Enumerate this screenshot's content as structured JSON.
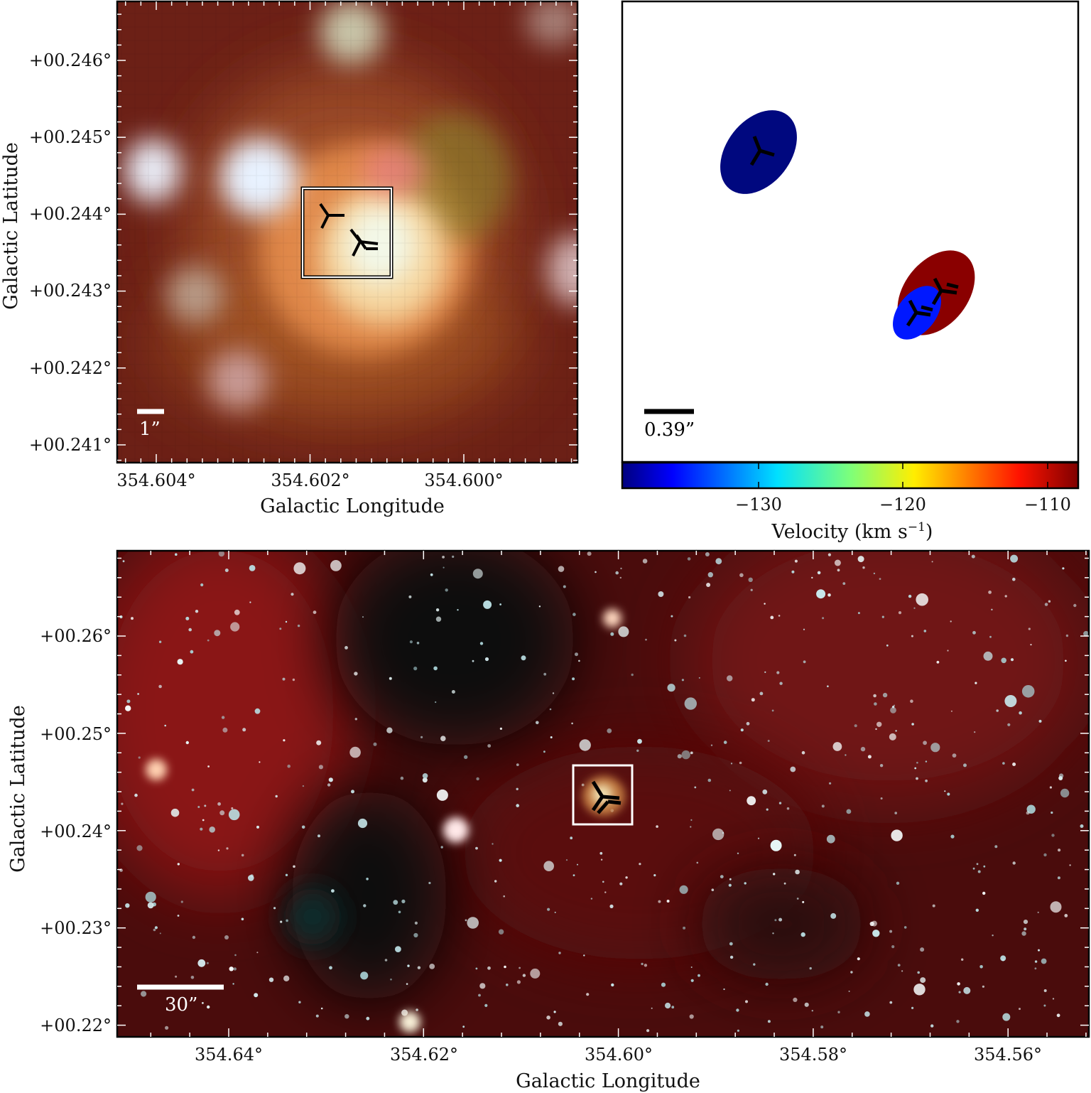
{
  "panels": {
    "zoom": {
      "xlabel": "Galactic Longitude",
      "ylabel": "Galactic Latitude",
      "xticks": [
        "354.604°",
        "354.602°",
        "354.600°"
      ],
      "yticks": [
        "+00.246°",
        "+00.245°",
        "+00.244°",
        "+00.243°",
        "+00.242°",
        "+00.241°"
      ],
      "scalebar": "1”",
      "colors": {
        "frame": "#000000",
        "box": "#ffffff",
        "scalebar": "#ffffff"
      }
    },
    "maser": {
      "scalebar": "0.39”",
      "colorbar": {
        "label": "Velocity (km s",
        "label_sup": "−1",
        "label_end": ")",
        "ticks": [
          "−130",
          "−120",
          "−110"
        ],
        "range": [
          -139.8,
          -107.6
        ],
        "colormap": "jet"
      },
      "spots": [
        {
          "velocity": -138,
          "color": "#00087f"
        },
        {
          "velocity": -134,
          "color": "#0018ff"
        },
        {
          "velocity": -109,
          "color": "#8a0000"
        }
      ]
    },
    "wide": {
      "xlabel": "Galactic Longitude",
      "ylabel": "Galactic Latitude",
      "xticks": [
        "354.64°",
        "354.62°",
        "354.60°",
        "354.58°",
        "354.56°"
      ],
      "yticks": [
        "+00.26°",
        "+00.25°",
        "+00.24°",
        "+00.23°",
        "+00.22°"
      ],
      "scalebar": "30”",
      "colors": {
        "background": "#4a0c0c",
        "dust_lane": "#0c0808",
        "box": "#ffffff"
      }
    }
  }
}
